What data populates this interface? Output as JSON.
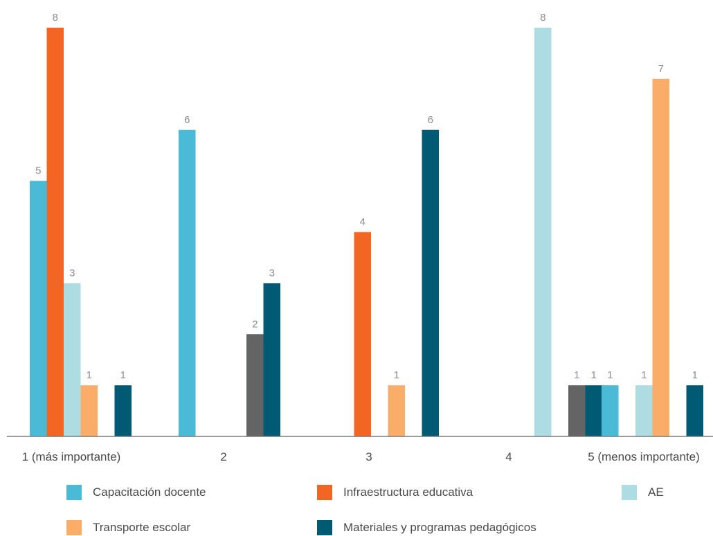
{
  "chart_data": {
    "type": "bar",
    "title": "",
    "xlabel": "",
    "ylabel": "",
    "ylim": [
      0,
      8
    ],
    "grid": false,
    "legend_position": "bottom",
    "categories": [
      "1 (más importante)",
      "2",
      "3",
      "4",
      "5 (menos importante)"
    ],
    "series": [
      {
        "name": "Capacitación docente",
        "color": "#4bbad6",
        "values": [
          5,
          6,
          null,
          null,
          1
        ]
      },
      {
        "name": "Infraestructura educativa",
        "color": "#f26522",
        "values": [
          8,
          null,
          4,
          null,
          null
        ]
      },
      {
        "name": "AE",
        "color": "#aedce3",
        "values": [
          3,
          null,
          null,
          8,
          1
        ]
      },
      {
        "name": "Transporte escolar",
        "color": "#f9ad68",
        "values": [
          1,
          null,
          1,
          null,
          7
        ]
      },
      {
        "name": "",
        "color": "#646464",
        "values": [
          null,
          2,
          null,
          1,
          null
        ]
      },
      {
        "name": "Materiales y programas pedagógicos",
        "color": "#005a73",
        "values": [
          1,
          3,
          6,
          1,
          1
        ]
      }
    ]
  }
}
